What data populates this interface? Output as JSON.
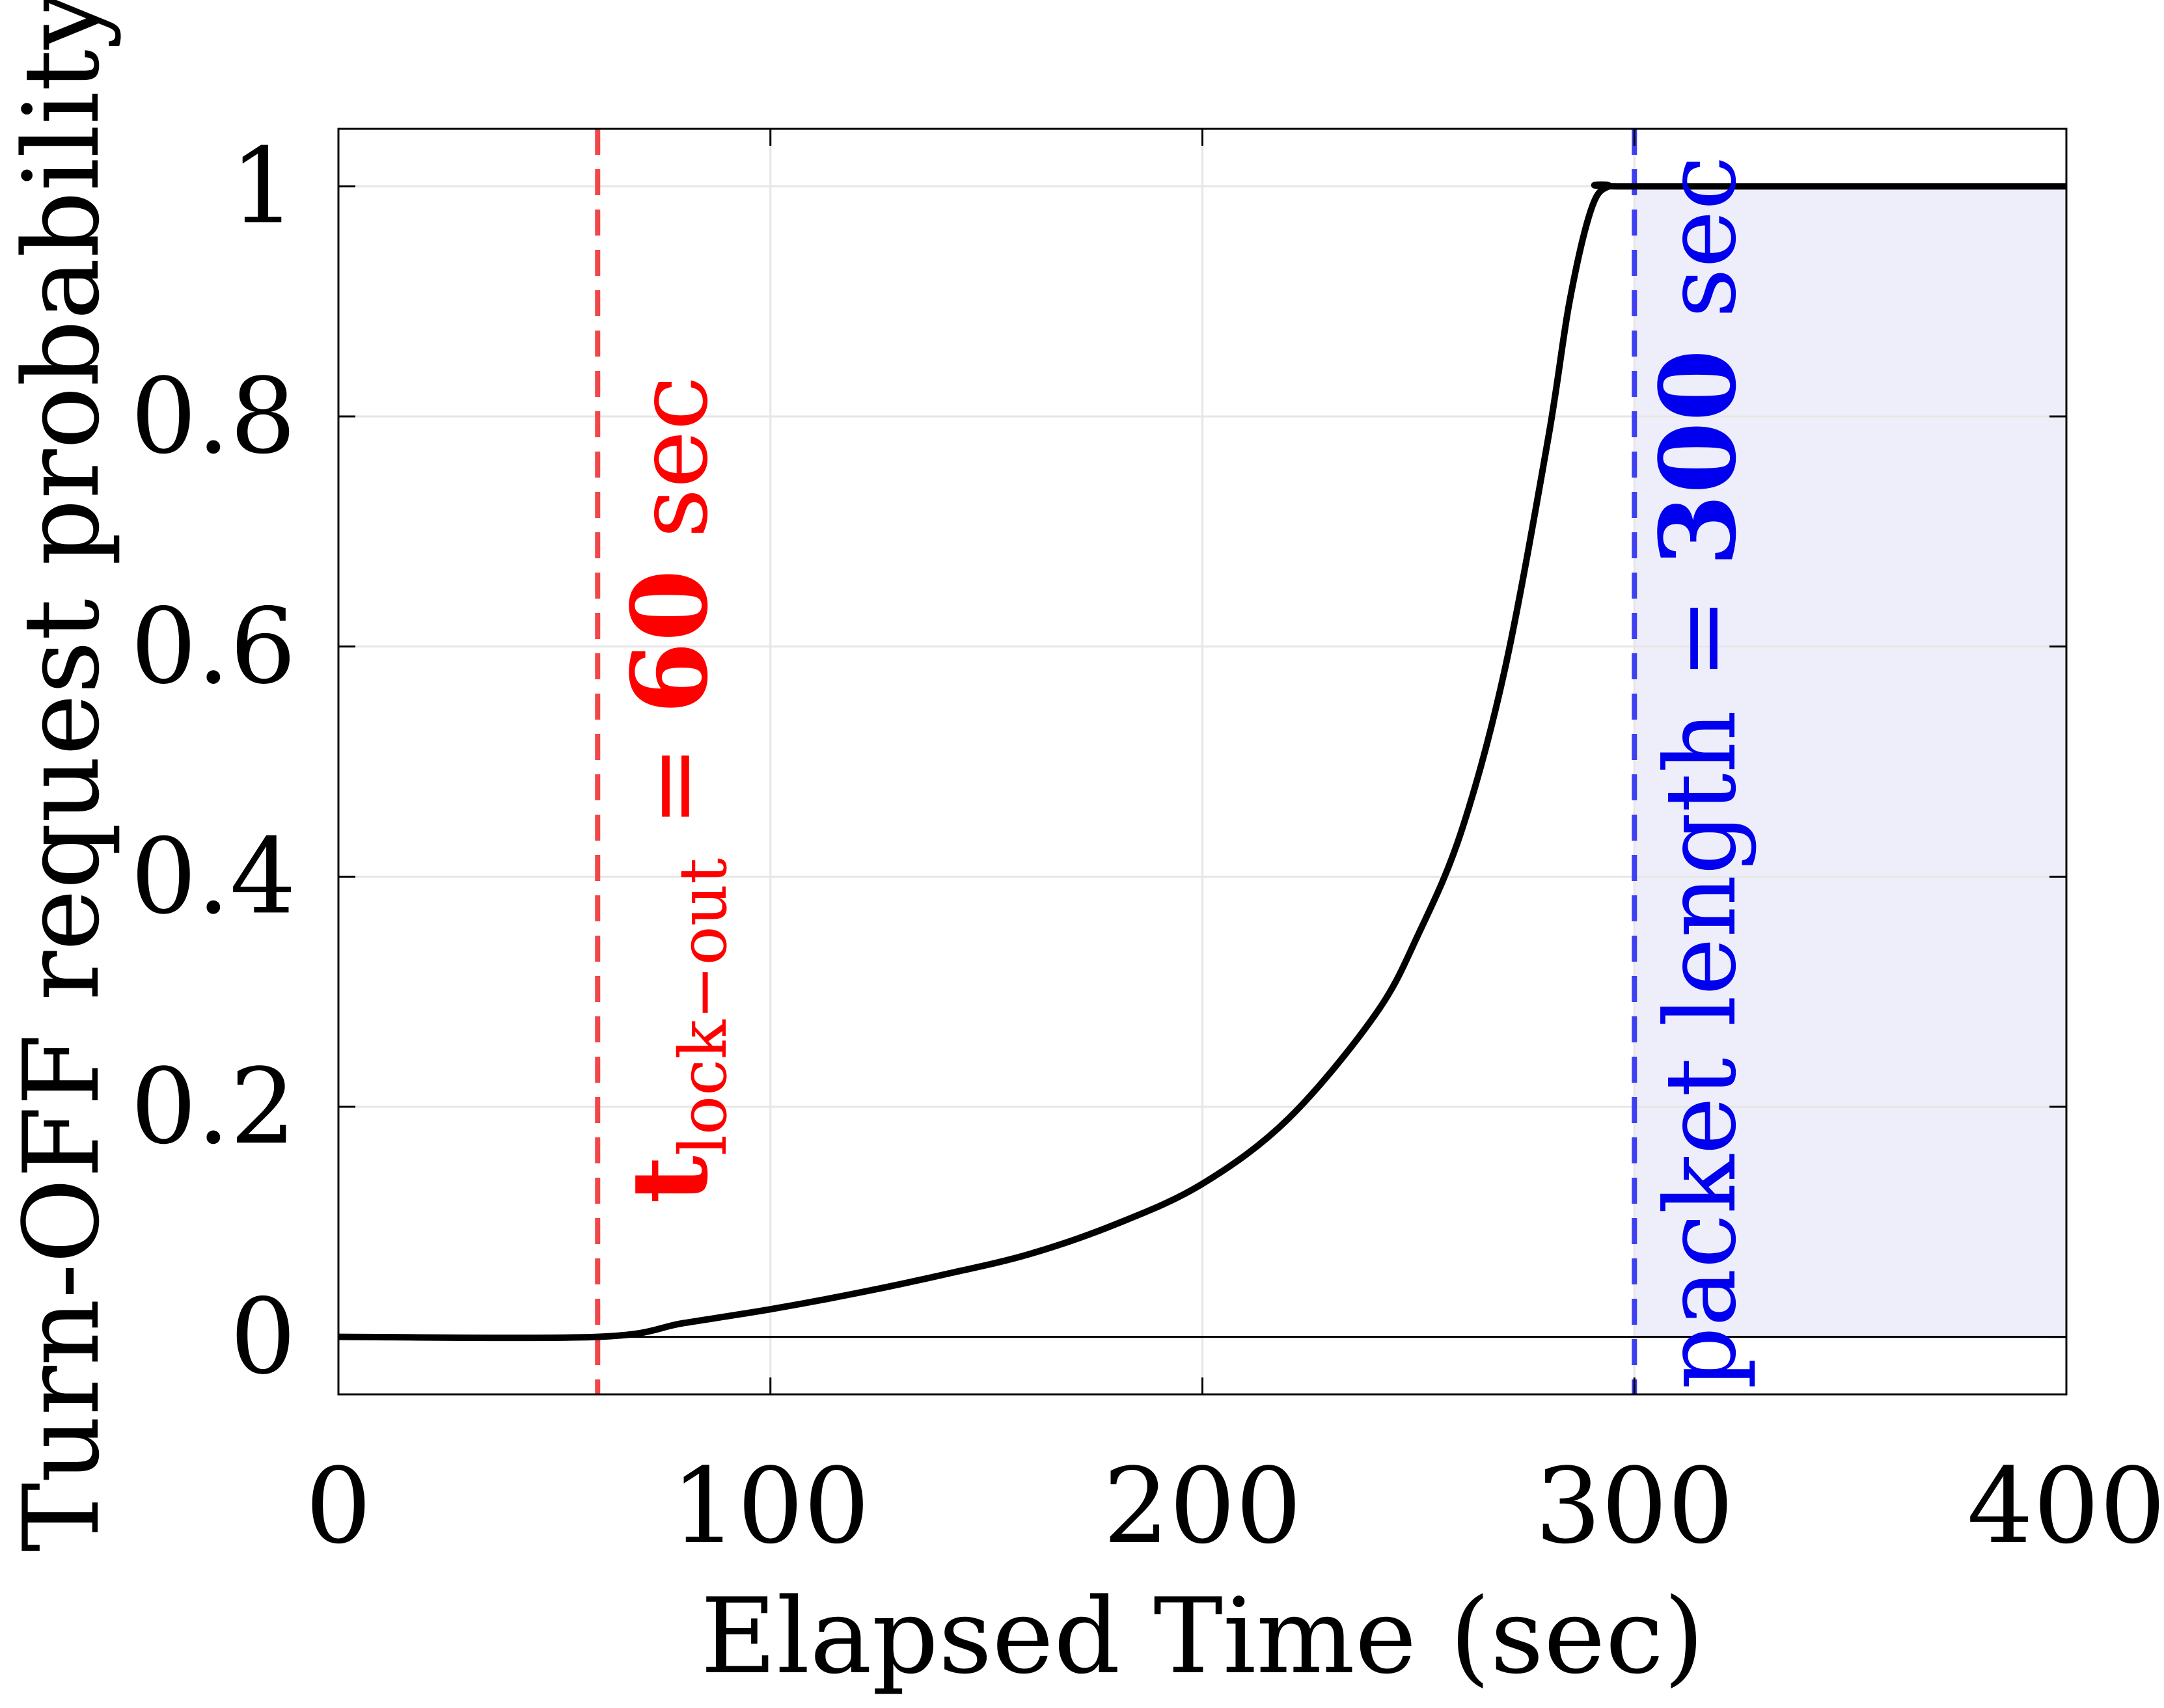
{
  "chart_data": {
    "type": "line",
    "title": "",
    "xlabel": "Elapsed Time (sec)",
    "ylabel": "Turn-OFF request probability",
    "xlim": [
      0,
      400
    ],
    "ylim": [
      -0.05,
      1.05
    ],
    "xticks": [
      0,
      100,
      200,
      300,
      400
    ],
    "xtick_labels": [
      "0",
      "100",
      "200",
      "300",
      "400"
    ],
    "yticks": [
      0,
      0.2,
      0.4,
      0.6,
      0.8,
      1
    ],
    "ytick_labels": [
      "0",
      "0.2",
      "0.4",
      "0.6",
      "0.8",
      "1"
    ],
    "grid": true,
    "series": [
      {
        "name": "Turn-OFF request probability",
        "color": "#000000",
        "x": [
          0,
          60,
          80,
          100,
          120,
          140,
          160,
          180,
          200,
          220,
          240,
          250,
          260,
          270,
          280,
          285,
          290,
          294,
          300,
          400
        ],
        "y": [
          0,
          0,
          0.012,
          0.024,
          0.038,
          0.054,
          0.072,
          0.098,
          0.133,
          0.19,
          0.28,
          0.35,
          0.44,
          0.58,
          0.78,
          0.9,
          0.98,
          1.0,
          1.0,
          1.0
        ]
      }
    ],
    "vlines": [
      {
        "x": 60,
        "color": "#f0474a",
        "style": "dashed"
      },
      {
        "x": 300,
        "color": "#3f3ff2",
        "style": "dashed"
      }
    ],
    "shaded_region": {
      "x_from": 300,
      "x_to": 400,
      "y_from": 0,
      "y_to": 1,
      "color": "#eeeefa"
    },
    "annotations": [
      {
        "id": "lockout",
        "x": 60,
        "color": "#ff0000",
        "main": "t",
        "sub": "lock−out",
        "mid": " = ",
        "bold": "60",
        "tail": " sec"
      },
      {
        "id": "packet",
        "x": 300,
        "color": "#0000ee",
        "main": "packet length",
        "mid": " = ",
        "bold": "300",
        "tail": " sec"
      }
    ]
  }
}
